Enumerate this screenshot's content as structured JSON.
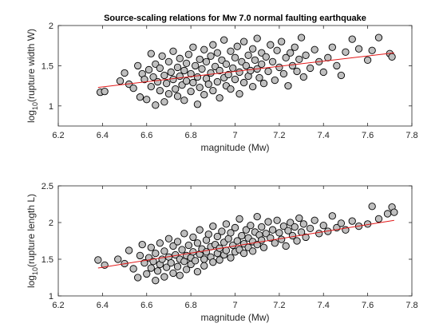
{
  "chart_data": [
    {
      "type": "scatter",
      "title": "Source-scaling relations for Mw 7.0 normal faulting earthquake",
      "xlabel": "magnitude (Mw)",
      "ylabel_prefix": "log",
      "ylabel_sub": "10",
      "ylabel_rest": "(rupture width W)",
      "xlim": [
        6.2,
        7.8
      ],
      "ylim": [
        0.75,
        2.0
      ],
      "xticks": [
        6.2,
        6.4,
        6.6,
        6.8,
        7.0,
        7.2,
        7.4,
        7.6,
        7.8
      ],
      "xtick_labels": [
        "6.2",
        "6.4",
        "6.6",
        "6.8",
        "7",
        "7.2",
        "7.4",
        "7.6",
        "7.8"
      ],
      "yticks": [
        1.0,
        1.5,
        2.0
      ],
      "ytick_labels": [
        "1",
        "1.5",
        "2"
      ],
      "grid": false,
      "marker_color": "#bfbfbf",
      "marker_edge": "#000000",
      "fit_color": "#e21818",
      "fit_line": {
        "x": [
          6.38,
          7.72
        ],
        "y": [
          1.23,
          1.66
        ]
      },
      "points": {
        "x": [
          6.39,
          6.41,
          6.48,
          6.5,
          6.52,
          6.54,
          6.56,
          6.57,
          6.58,
          6.59,
          6.6,
          6.61,
          6.62,
          6.62,
          6.63,
          6.64,
          6.64,
          6.65,
          6.66,
          6.66,
          6.67,
          6.68,
          6.68,
          6.69,
          6.7,
          6.7,
          6.71,
          6.72,
          6.72,
          6.73,
          6.74,
          6.74,
          6.75,
          6.75,
          6.76,
          6.77,
          6.77,
          6.78,
          6.78,
          6.79,
          6.8,
          6.8,
          6.81,
          6.81,
          6.82,
          6.83,
          6.83,
          6.84,
          6.84,
          6.85,
          6.86,
          6.86,
          6.87,
          6.87,
          6.88,
          6.89,
          6.89,
          6.9,
          6.9,
          6.91,
          6.92,
          6.92,
          6.93,
          6.93,
          6.94,
          6.95,
          6.95,
          6.96,
          6.96,
          6.97,
          6.98,
          6.98,
          6.99,
          7.0,
          7.0,
          7.01,
          7.02,
          7.02,
          7.03,
          7.04,
          7.04,
          7.05,
          7.06,
          7.06,
          7.07,
          7.08,
          7.08,
          7.09,
          7.1,
          7.1,
          7.11,
          7.12,
          7.12,
          7.13,
          7.14,
          7.15,
          7.16,
          7.17,
          7.18,
          7.19,
          7.2,
          7.21,
          7.22,
          7.23,
          7.24,
          7.25,
          7.26,
          7.27,
          7.28,
          7.29,
          7.3,
          7.31,
          7.32,
          7.34,
          7.36,
          7.38,
          7.4,
          7.42,
          7.44,
          7.46,
          7.48,
          7.5,
          7.53,
          7.56,
          7.6,
          7.62,
          7.65,
          7.7,
          7.71
        ],
        "y": [
          1.17,
          1.18,
          1.31,
          1.41,
          1.27,
          1.22,
          1.5,
          1.11,
          1.4,
          1.33,
          1.08,
          1.45,
          1.24,
          1.65,
          1.36,
          1.01,
          1.52,
          1.3,
          1.19,
          1.47,
          1.62,
          1.05,
          1.38,
          1.28,
          1.55,
          1.15,
          1.42,
          1.33,
          1.68,
          1.21,
          1.48,
          1.12,
          1.37,
          1.59,
          1.26,
          1.44,
          1.07,
          1.53,
          1.31,
          1.64,
          1.18,
          1.4,
          1.73,
          1.29,
          1.5,
          1.02,
          1.36,
          1.58,
          1.23,
          1.46,
          1.7,
          1.14,
          1.34,
          1.55,
          1.27,
          1.62,
          1.41,
          1.19,
          1.76,
          1.49,
          1.3,
          1.66,
          1.1,
          1.44,
          1.57,
          1.35,
          1.82,
          1.25,
          1.52,
          1.39,
          1.68,
          1.21,
          1.47,
          1.6,
          1.33,
          1.74,
          1.42,
          1.15,
          1.55,
          1.8,
          1.29,
          1.5,
          1.63,
          1.37,
          1.44,
          1.71,
          1.24,
          1.57,
          1.46,
          1.84,
          1.35,
          1.66,
          1.52,
          1.28,
          1.61,
          1.43,
          1.76,
          1.55,
          1.32,
          1.69,
          1.48,
          1.8,
          1.4,
          1.6,
          1.25,
          1.66,
          1.5,
          1.73,
          1.43,
          1.58,
          1.85,
          1.36,
          1.63,
          1.47,
          1.7,
          1.55,
          1.42,
          1.6,
          1.73,
          1.5,
          1.38,
          1.67,
          1.83,
          1.71,
          1.57,
          1.69,
          1.85,
          1.65,
          1.61
        ]
      }
    },
    {
      "type": "scatter",
      "title": "",
      "xlabel": "magnitude (Mw)",
      "ylabel_prefix": "log",
      "ylabel_sub": "10",
      "ylabel_rest": "(rupture length L)",
      "xlim": [
        6.2,
        7.8
      ],
      "ylim": [
        1.0,
        2.5
      ],
      "xticks": [
        6.2,
        6.4,
        6.6,
        6.8,
        7.0,
        7.2,
        7.4,
        7.6,
        7.8
      ],
      "xtick_labels": [
        "6.2",
        "6.4",
        "6.6",
        "6.8",
        "7",
        "7.2",
        "7.4",
        "7.6",
        "7.8"
      ],
      "yticks": [
        1.0,
        1.5,
        2.0,
        2.5
      ],
      "ytick_labels": [
        "1",
        "1.5",
        "2",
        "2.5"
      ],
      "grid": false,
      "marker_color": "#bfbfbf",
      "marker_edge": "#000000",
      "fit_color": "#e21818",
      "fit_line": {
        "x": [
          6.38,
          7.72
        ],
        "y": [
          1.38,
          2.03
        ]
      },
      "points": {
        "x": [
          6.38,
          6.41,
          6.47,
          6.5,
          6.52,
          6.54,
          6.56,
          6.57,
          6.58,
          6.59,
          6.6,
          6.61,
          6.62,
          6.62,
          6.63,
          6.64,
          6.64,
          6.65,
          6.66,
          6.66,
          6.67,
          6.68,
          6.68,
          6.69,
          6.7,
          6.7,
          6.71,
          6.72,
          6.72,
          6.73,
          6.74,
          6.74,
          6.75,
          6.75,
          6.76,
          6.77,
          6.77,
          6.78,
          6.78,
          6.79,
          6.8,
          6.8,
          6.81,
          6.81,
          6.82,
          6.83,
          6.83,
          6.84,
          6.84,
          6.85,
          6.86,
          6.86,
          6.87,
          6.87,
          6.88,
          6.89,
          6.89,
          6.9,
          6.9,
          6.91,
          6.92,
          6.92,
          6.93,
          6.93,
          6.94,
          6.95,
          6.95,
          6.96,
          6.96,
          6.97,
          6.98,
          6.98,
          6.99,
          7.0,
          7.0,
          7.01,
          7.02,
          7.02,
          7.03,
          7.04,
          7.04,
          7.05,
          7.06,
          7.06,
          7.07,
          7.08,
          7.08,
          7.09,
          7.1,
          7.1,
          7.11,
          7.12,
          7.12,
          7.13,
          7.14,
          7.15,
          7.16,
          7.17,
          7.18,
          7.19,
          7.2,
          7.21,
          7.22,
          7.23,
          7.24,
          7.25,
          7.26,
          7.27,
          7.28,
          7.29,
          7.3,
          7.31,
          7.32,
          7.34,
          7.36,
          7.38,
          7.4,
          7.42,
          7.44,
          7.46,
          7.48,
          7.5,
          7.53,
          7.56,
          7.6,
          7.62,
          7.65,
          7.69,
          7.71,
          7.72
        ],
        "y": [
          1.49,
          1.42,
          1.5,
          1.44,
          1.62,
          1.37,
          1.25,
          1.55,
          1.7,
          1.45,
          1.3,
          1.52,
          1.38,
          1.66,
          1.47,
          1.21,
          1.58,
          1.34,
          1.43,
          1.72,
          1.5,
          1.26,
          1.61,
          1.39,
          1.53,
          1.78,
          1.45,
          1.31,
          1.68,
          1.56,
          1.4,
          1.74,
          1.5,
          1.28,
          1.63,
          1.47,
          1.85,
          1.55,
          1.36,
          1.69,
          1.52,
          1.43,
          1.8,
          1.6,
          1.48,
          1.33,
          1.72,
          1.57,
          1.9,
          1.64,
          1.5,
          1.41,
          1.76,
          1.6,
          1.84,
          1.53,
          1.67,
          1.46,
          1.95,
          1.7,
          1.58,
          1.81,
          1.49,
          1.65,
          1.88,
          1.73,
          1.56,
          1.98,
          1.62,
          1.78,
          1.52,
          1.86,
          1.69,
          1.6,
          1.93,
          1.75,
          1.63,
          2.05,
          1.82,
          1.71,
          1.58,
          1.9,
          1.66,
          1.79,
          1.96,
          1.74,
          1.61,
          1.87,
          1.7,
          2.08,
          1.83,
          1.76,
          1.94,
          1.66,
          1.85,
          2.01,
          1.79,
          1.9,
          1.72,
          2.03,
          1.86,
          1.77,
          1.95,
          1.68,
          1.89,
          2.0,
          1.82,
          1.94,
          1.75,
          2.06,
          1.87,
          1.98,
          1.8,
          1.92,
          2.03,
          1.85,
          1.96,
          1.88,
          2.09,
          1.93,
          1.99,
          1.9,
          2.02,
          1.95,
          1.98,
          2.22,
          2.05,
          2.12,
          2.21,
          2.14
        ]
      }
    }
  ]
}
